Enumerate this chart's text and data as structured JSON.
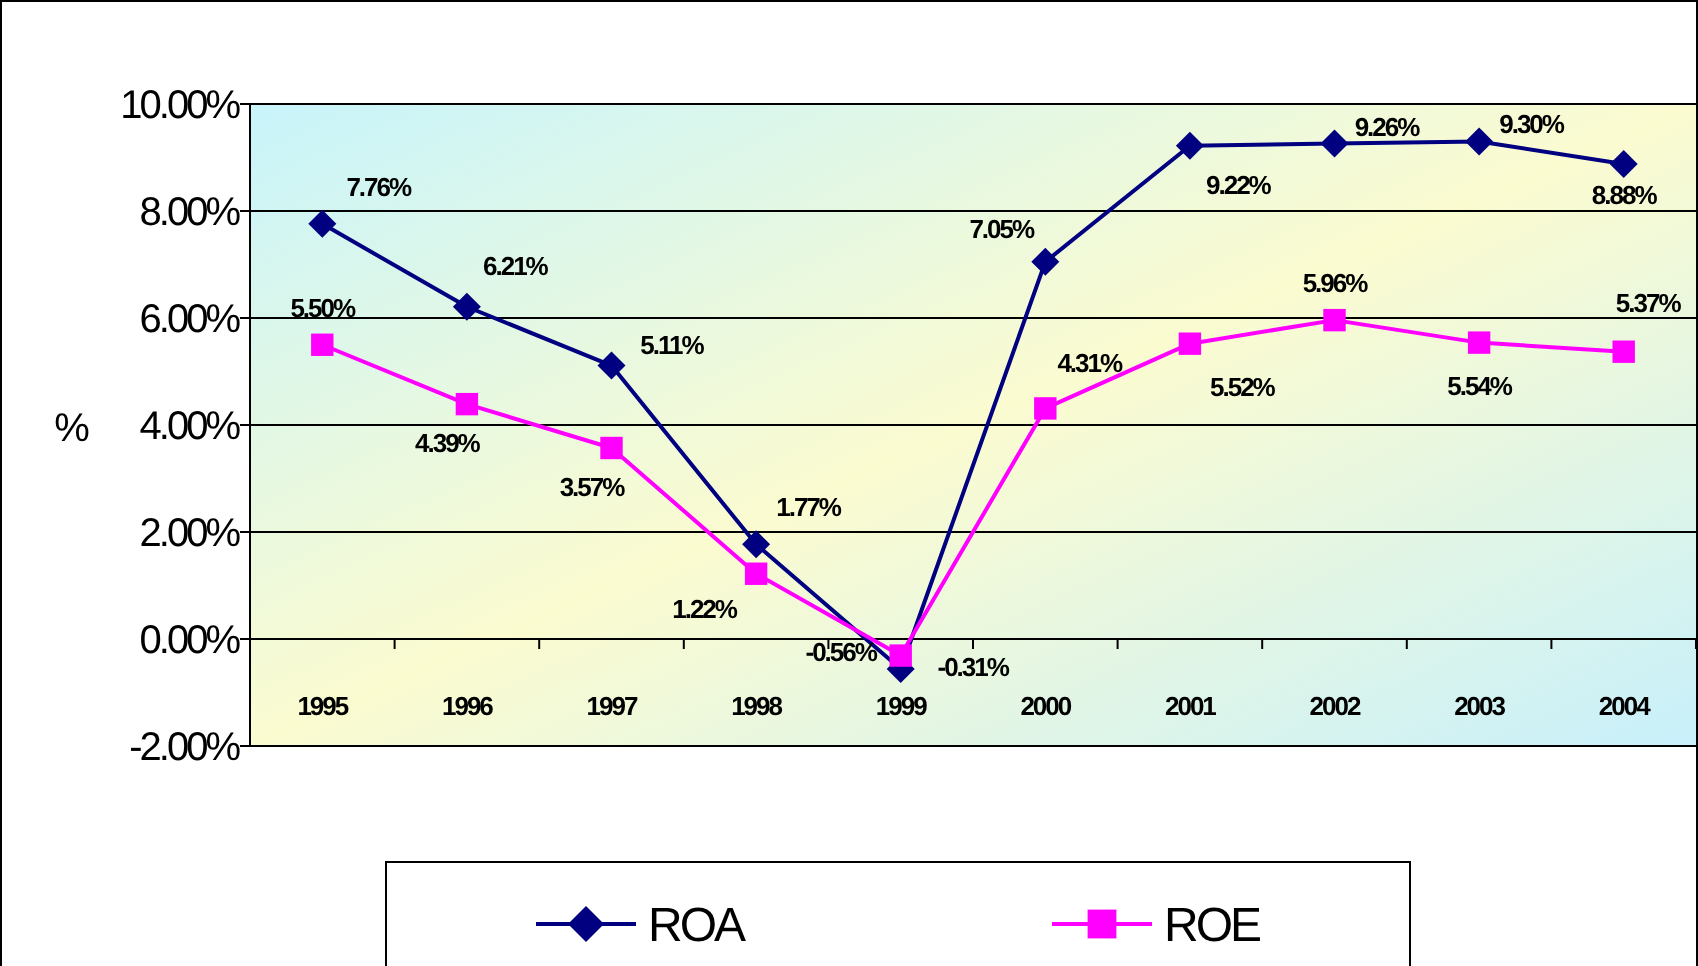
{
  "chart_data": {
    "type": "line",
    "ylabel": "%",
    "categories": [
      "1995",
      "1996",
      "1997",
      "1998",
      "1999",
      "2000",
      "2001",
      "2002",
      "2003",
      "2004"
    ],
    "series": [
      {
        "name": "ROA",
        "color": "#000080",
        "marker": "diamond",
        "values": [
          7.76,
          6.21,
          5.11,
          1.77,
          -0.56,
          7.05,
          9.22,
          9.26,
          9.3,
          8.88
        ],
        "value_labels": [
          "7.76%",
          "6.21%",
          "5.11%",
          "1.77%",
          "-0.56%",
          "7.05%",
          "9.22%",
          "9.26%",
          "9.30%",
          "8.88%"
        ]
      },
      {
        "name": "ROE",
        "color": "#ff00ff",
        "marker": "square",
        "values": [
          5.5,
          4.39,
          3.57,
          1.22,
          -0.31,
          4.31,
          5.52,
          5.96,
          5.54,
          5.37
        ],
        "value_labels": [
          "5.50%",
          "4.39%",
          "3.57%",
          "1.22%",
          "-0.31%",
          "4.31%",
          "5.52%",
          "5.96%",
          "5.54%",
          "5.37%"
        ]
      }
    ],
    "ylim": [
      -2,
      10
    ],
    "yticks": [
      {
        "value": -2,
        "label": "-2.00%"
      },
      {
        "value": 0,
        "label": "0.00%"
      },
      {
        "value": 2,
        "label": "2.00%"
      },
      {
        "value": 4,
        "label": "4.00%"
      },
      {
        "value": 6,
        "label": "6.00%"
      },
      {
        "value": 8,
        "label": "8.00%"
      },
      {
        "value": 10,
        "label": "10.00%"
      }
    ],
    "grid": "y",
    "legend": "bottom",
    "line_style": "solid"
  }
}
